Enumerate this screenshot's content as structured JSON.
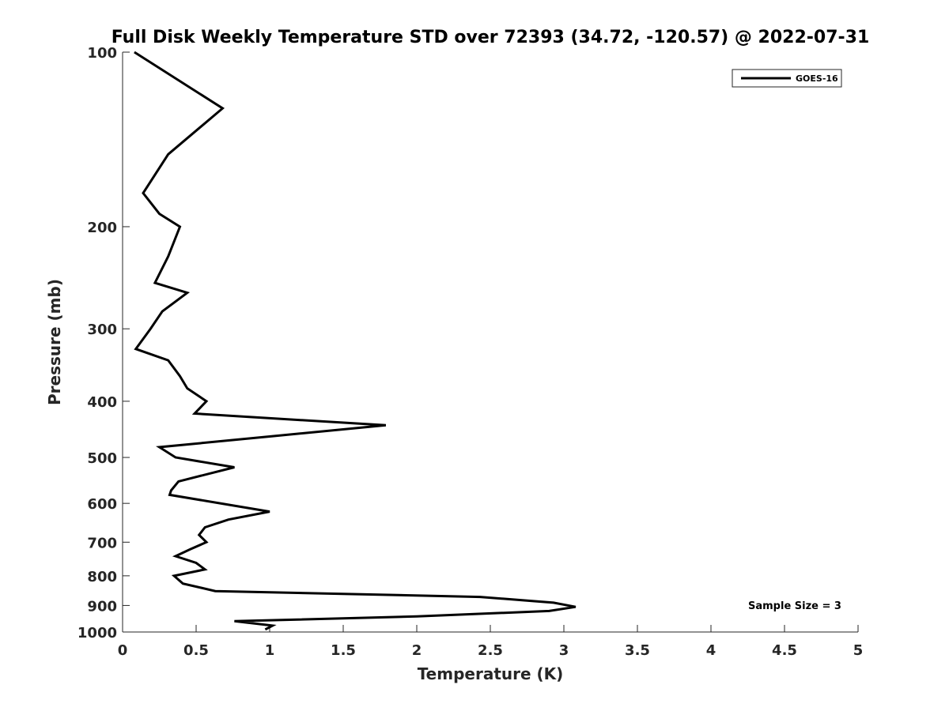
{
  "chart_data": {
    "type": "line",
    "title": "Full Disk Weekly Temperature STD over 72393 (34.72, -120.57) @ 2022-07-31",
    "xlabel": "Temperature (K)",
    "ylabel": "Pressure (mb)",
    "xlim": [
      0,
      5
    ],
    "ylim": [
      100,
      1000
    ],
    "yscale": "log",
    "y_reversed": true,
    "xticks": [
      "0",
      "0.5",
      "1",
      "1.5",
      "2",
      "2.5",
      "3",
      "3.5",
      "4",
      "4.5",
      "5"
    ],
    "yticks": [
      "100",
      "200",
      "300",
      "400",
      "500",
      "600",
      "700",
      "800",
      "900",
      "1000"
    ],
    "grid": false,
    "legend_position": "top-right",
    "annotation": "Sample Size = 3",
    "series": [
      {
        "name": "GOES-16",
        "color": "#000000",
        "points": [
          [
            0.08,
            100
          ],
          [
            0.68,
            125
          ],
          [
            0.31,
            150
          ],
          [
            0.14,
            175
          ],
          [
            0.25,
            190
          ],
          [
            0.39,
            200
          ],
          [
            0.31,
            225
          ],
          [
            0.22,
            250
          ],
          [
            0.44,
            260
          ],
          [
            0.27,
            280
          ],
          [
            0.19,
            300
          ],
          [
            0.09,
            325
          ],
          [
            0.31,
            340
          ],
          [
            0.39,
            362
          ],
          [
            0.44,
            380
          ],
          [
            0.57,
            400
          ],
          [
            0.49,
            420
          ],
          [
            1.79,
            440
          ],
          [
            1.0,
            460
          ],
          [
            0.25,
            480
          ],
          [
            0.36,
            500
          ],
          [
            0.76,
            520
          ],
          [
            0.38,
            550
          ],
          [
            0.33,
            570
          ],
          [
            0.32,
            580
          ],
          [
            1.0,
            620
          ],
          [
            0.72,
            640
          ],
          [
            0.56,
            660
          ],
          [
            0.52,
            680
          ],
          [
            0.57,
            700
          ],
          [
            0.46,
            720
          ],
          [
            0.36,
            740
          ],
          [
            0.5,
            760
          ],
          [
            0.56,
            780
          ],
          [
            0.35,
            800
          ],
          [
            0.41,
            825
          ],
          [
            0.63,
            850
          ],
          [
            2.43,
            870
          ],
          [
            2.93,
            890
          ],
          [
            3.08,
            905
          ],
          [
            2.9,
            920
          ],
          [
            2.0,
            940
          ],
          [
            0.76,
            958
          ],
          [
            1.02,
            975
          ],
          [
            0.97,
            990
          ]
        ]
      }
    ]
  }
}
